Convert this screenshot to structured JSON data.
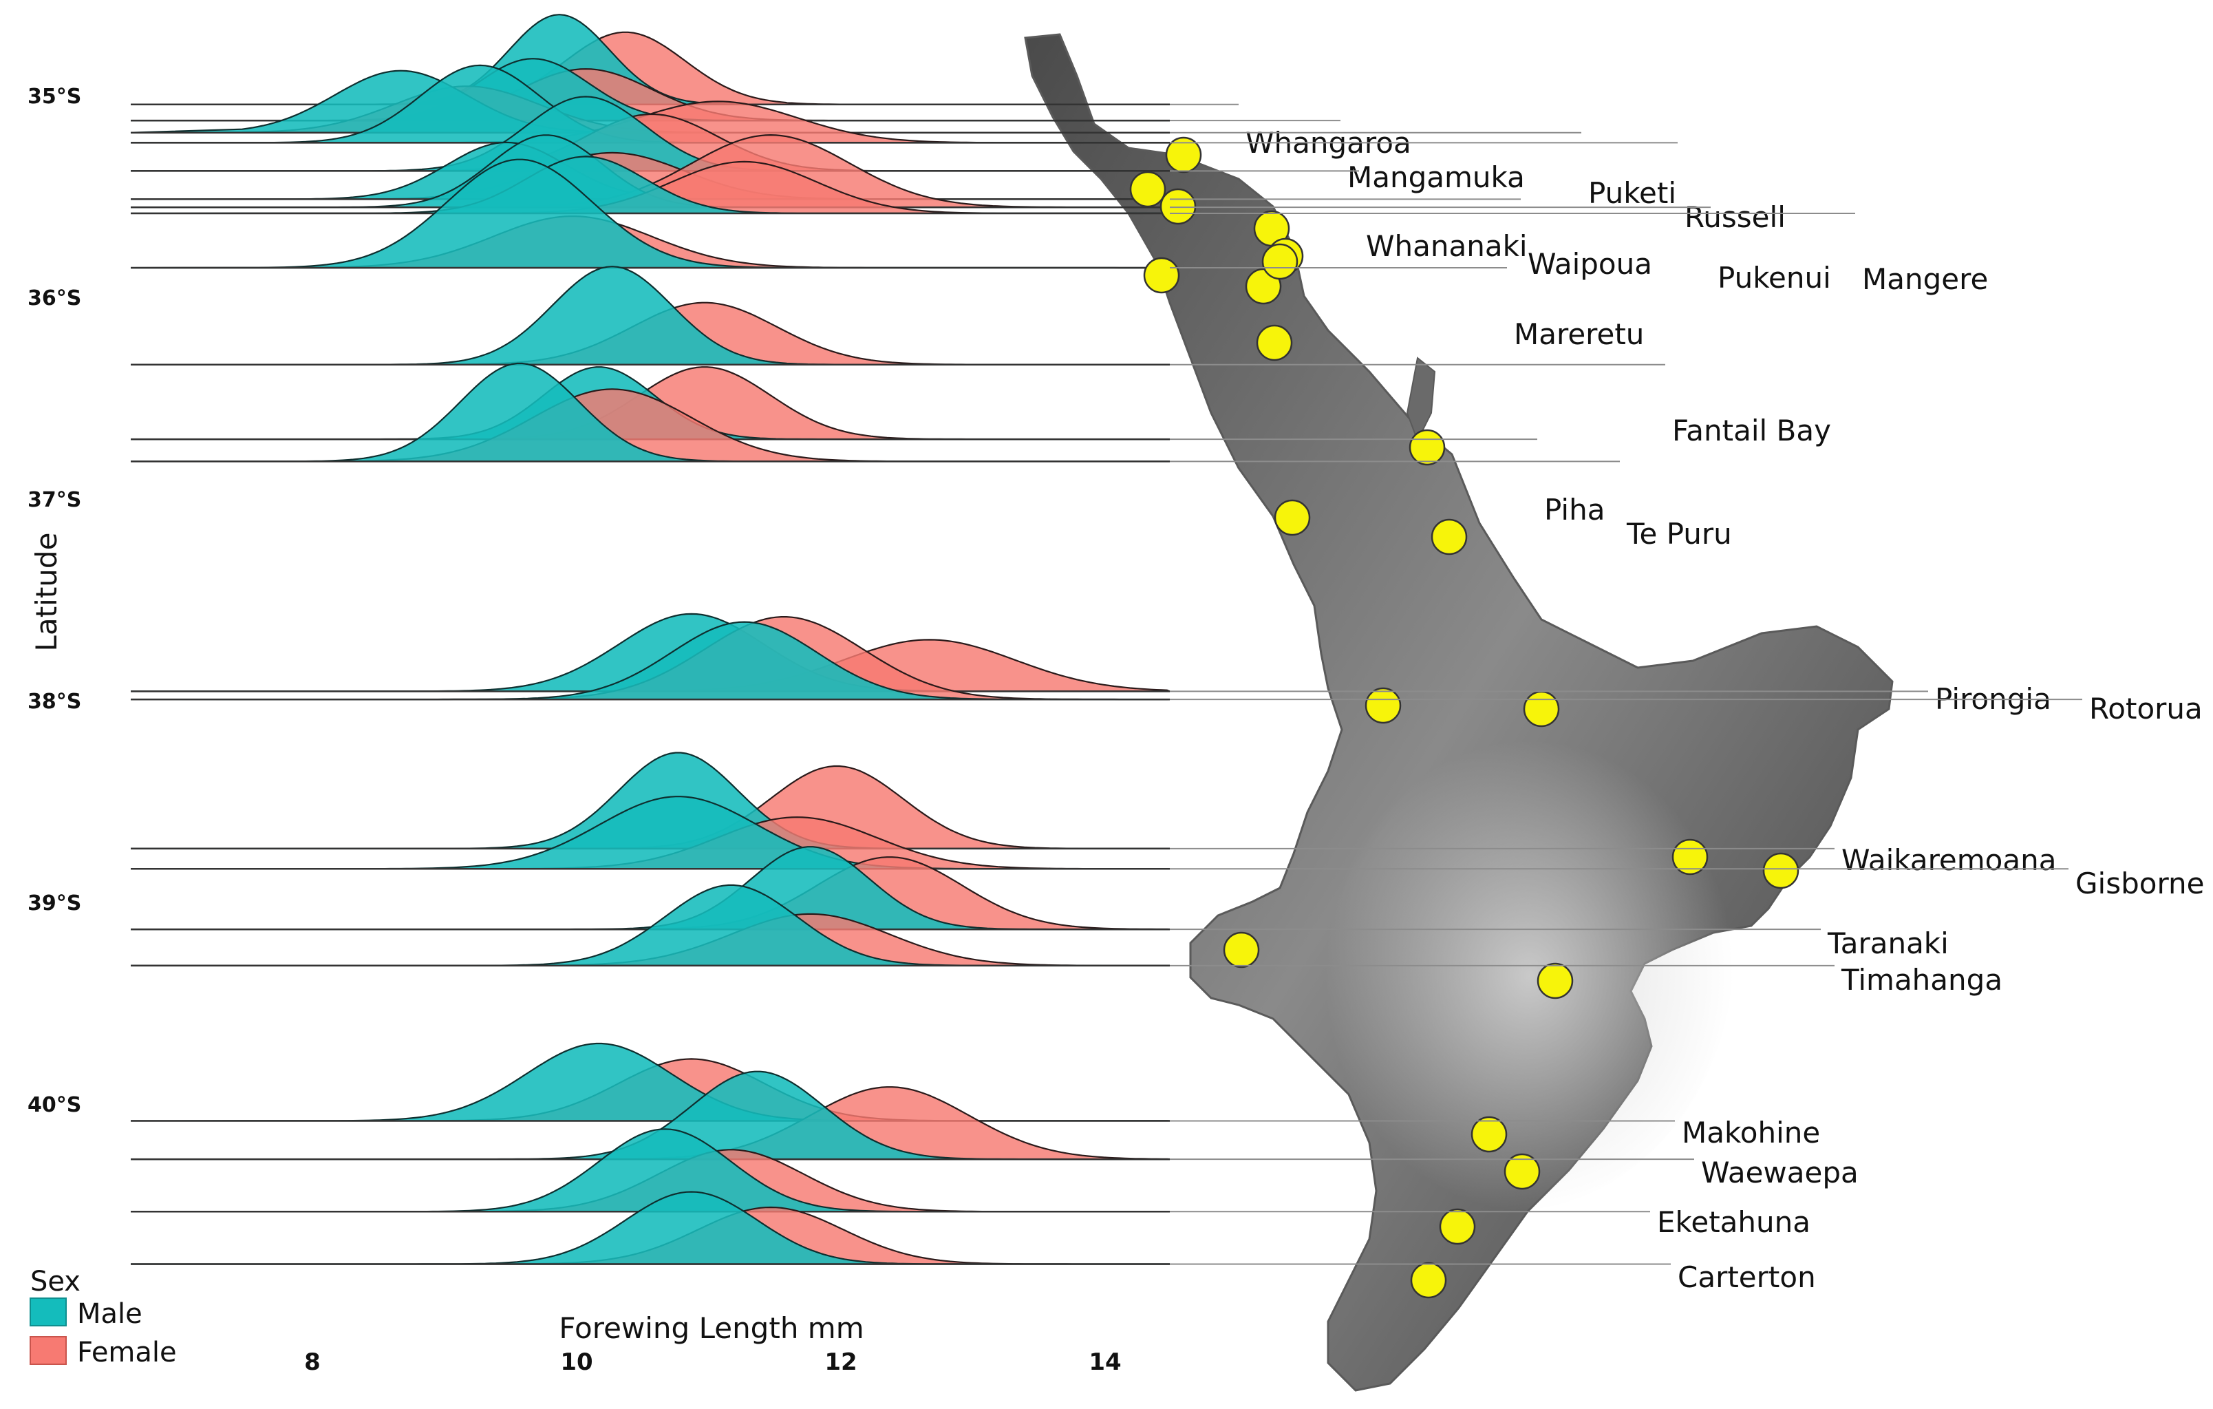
{
  "chart_data": {
    "type": "ridgeline",
    "xlabel": "Forewing Length mm",
    "ylabel": "Latitude",
    "x_ticks": [
      8,
      10,
      12,
      14
    ],
    "xlim": [
      7.5,
      15.0
    ],
    "latitude_ticks": [
      "35°S",
      "36°S",
      "37°S",
      "38°S",
      "39°S",
      "40°S"
    ],
    "ylim": [
      34.7,
      41.25
    ],
    "legend": {
      "title": "Sex",
      "entries": [
        {
          "name": "Male",
          "color": "#14bcbc"
        },
        {
          "name": "Female",
          "color": "#f77a72"
        }
      ]
    },
    "colors": {
      "male": "#14bcbc",
      "female": "#f77a72",
      "point": "#f7f40a"
    },
    "map_icon": "north-island-new-zealand-relief-map",
    "sites": [
      {
        "name": "Whangaroa",
        "lat": 35.04,
        "male": {
          "mode": 9.9,
          "sd": 0.38,
          "height": 0.87
        },
        "female": {
          "mode": 10.4,
          "sd": 0.45,
          "height": 0.7
        }
      },
      {
        "name": "Mangamuka",
        "lat": 35.12,
        "male": {
          "mode": 9.7,
          "sd": 0.42,
          "height": 0.6
        },
        "female": {
          "mode": 10.1,
          "sd": 0.5,
          "height": 0.5
        }
      },
      {
        "name": "Puketi",
        "lat": 35.18,
        "male": {
          "mode": 8.7,
          "sd": 0.5,
          "height": 0.6
        },
        "female": {
          "mode": 9.2,
          "sd": 0.55,
          "height": 0.45
        }
      },
      {
        "name": "Russell",
        "lat": 35.23,
        "male": {
          "mode": 9.3,
          "sd": 0.45,
          "height": 0.75
        },
        "female": {
          "mode": 11.1,
          "sd": 0.6,
          "height": 0.4
        }
      },
      {
        "name": "Whananaki",
        "lat": 35.37,
        "male": {
          "mode": 10.1,
          "sd": 0.45,
          "height": 0.72
        },
        "female": {
          "mode": 10.6,
          "sd": 0.5,
          "height": 0.55
        }
      },
      {
        "name": "Waipoua",
        "lat": 35.51,
        "male": {
          "mode": 9.5,
          "sd": 0.45,
          "height": 0.55
        },
        "female": {
          "mode": 10.3,
          "sd": 0.55,
          "height": 0.45
        }
      },
      {
        "name": "Pukenui",
        "lat": 35.55,
        "male": {
          "mode": 9.8,
          "sd": 0.42,
          "height": 0.7
        },
        "female": {
          "mode": 11.5,
          "sd": 0.6,
          "height": 0.7
        }
      },
      {
        "name": "Mangere",
        "lat": 35.58,
        "male": {
          "mode": 10.1,
          "sd": 0.45,
          "height": 0.55
        },
        "female": {
          "mode": 11.3,
          "sd": 0.55,
          "height": 0.5
        }
      },
      {
        "name": "Mareretu",
        "lat": 35.85,
        "male": {
          "mode": 9.6,
          "sd": 0.55,
          "height": 1.05
        },
        "female": {
          "mode": 10.0,
          "sd": 0.6,
          "height": 0.5
        }
      },
      {
        "name": "Fantail Bay",
        "lat": 36.33,
        "male": {
          "mode": 10.3,
          "sd": 0.45,
          "height": 0.95
        },
        "female": {
          "mode": 11.0,
          "sd": 0.55,
          "height": 0.6
        }
      },
      {
        "name": "Piha",
        "lat": 36.7,
        "male": {
          "mode": 10.2,
          "sd": 0.42,
          "height": 0.7
        },
        "female": {
          "mode": 11.0,
          "sd": 0.5,
          "height": 0.7
        }
      },
      {
        "name": "Te Puru",
        "lat": 36.81,
        "male": {
          "mode": 9.6,
          "sd": 0.45,
          "height": 0.95
        },
        "female": {
          "mode": 10.3,
          "sd": 0.6,
          "height": 0.7
        }
      },
      {
        "name": "Pirongia",
        "lat": 37.95,
        "male": {
          "mode": 10.9,
          "sd": 0.55,
          "height": 0.75
        },
        "female": {
          "mode": 12.7,
          "sd": 0.65,
          "height": 0.5
        }
      },
      {
        "name": "Rotorua",
        "lat": 37.99,
        "male": {
          "mode": 11.3,
          "sd": 0.55,
          "height": 0.75
        },
        "female": {
          "mode": 11.6,
          "sd": 0.6,
          "height": 0.8
        }
      },
      {
        "name": "Waikaremoana",
        "lat": 38.73,
        "male": {
          "mode": 10.8,
          "sd": 0.45,
          "height": 0.93
        },
        "female": {
          "mode": 12.0,
          "sd": 0.5,
          "height": 0.8
        }
      },
      {
        "name": "Gisborne",
        "lat": 38.83,
        "male": {
          "mode": 10.8,
          "sd": 0.6,
          "height": 0.7
        },
        "female": {
          "mode": 11.7,
          "sd": 0.6,
          "height": 0.5
        }
      },
      {
        "name": "Taranaki",
        "lat": 39.13,
        "male": {
          "mode": 11.8,
          "sd": 0.45,
          "height": 0.8
        },
        "female": {
          "mode": 12.4,
          "sd": 0.55,
          "height": 0.7
        }
      },
      {
        "name": "Timahanga",
        "lat": 39.31,
        "male": {
          "mode": 11.2,
          "sd": 0.5,
          "height": 0.78
        },
        "female": {
          "mode": 11.8,
          "sd": 0.6,
          "height": 0.5
        }
      },
      {
        "name": "Makohine",
        "lat": 40.08,
        "male": {
          "mode": 10.2,
          "sd": 0.55,
          "height": 0.75
        },
        "female": {
          "mode": 10.9,
          "sd": 0.55,
          "height": 0.6
        }
      },
      {
        "name": "Waewaepa",
        "lat": 40.27,
        "male": {
          "mode": 11.4,
          "sd": 0.5,
          "height": 0.85
        },
        "female": {
          "mode": 12.4,
          "sd": 0.6,
          "height": 0.7
        }
      },
      {
        "name": "Eketahuna",
        "lat": 40.53,
        "male": {
          "mode": 10.7,
          "sd": 0.5,
          "height": 0.8
        },
        "female": {
          "mode": 11.2,
          "sd": 0.55,
          "height": 0.6
        }
      },
      {
        "name": "Carterton",
        "lat": 40.79,
        "male": {
          "mode": 10.9,
          "sd": 0.5,
          "height": 0.7
        },
        "female": {
          "mode": 11.5,
          "sd": 0.55,
          "height": 0.55
        }
      }
    ]
  }
}
